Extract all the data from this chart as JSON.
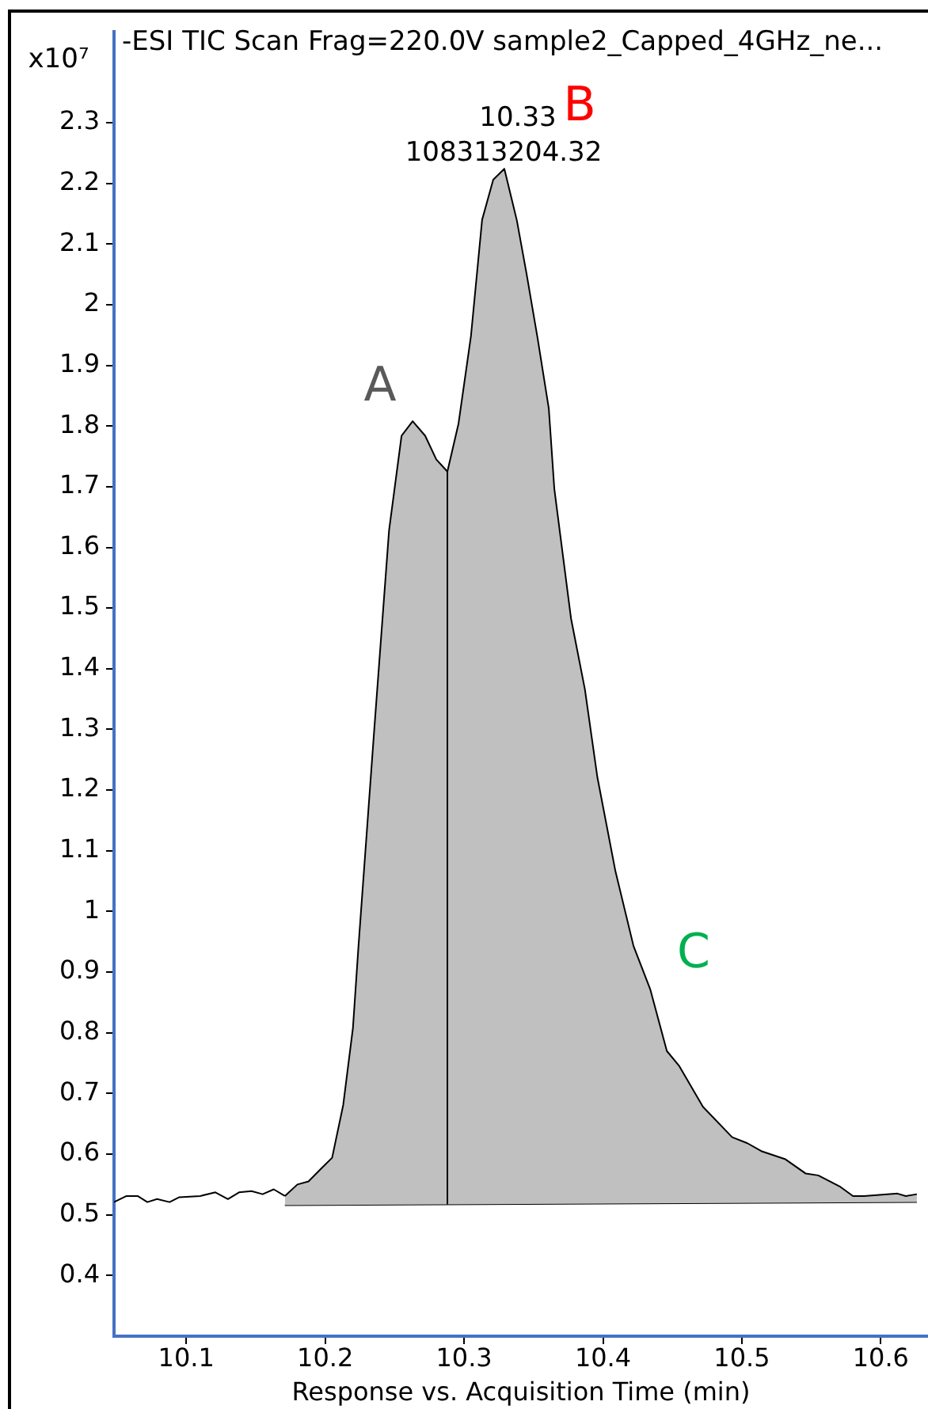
{
  "chart_data": {
    "type": "line",
    "title": "-ESI TIC Scan Frag=220.0V sample2_Capped_4GHz_ne...",
    "xlabel": "Response vs. Acquisition Time (min)",
    "ylabel": "x10⁷",
    "xlim": [
      10.048,
      10.634
    ],
    "xticks": [
      10.1,
      10.2,
      10.3,
      10.4,
      10.5,
      10.6
    ],
    "ylim": [
      0.3,
      2.45
    ],
    "yticks": [
      0.4,
      0.5,
      0.6,
      0.7,
      0.8,
      0.9,
      1,
      1.1,
      1.2,
      1.3,
      1.4,
      1.5,
      1.6,
      1.7,
      1.8,
      1.9,
      2,
      2.1,
      2.2,
      2.3
    ],
    "grid": false,
    "legend": false,
    "marker": "none",
    "line_style": "solid",
    "series": [
      {
        "type": "line",
        "color": "#000000",
        "x": [
          10.048,
          10.057,
          10.065,
          10.072,
          10.079,
          10.088,
          10.095,
          10.11,
          10.121,
          10.13,
          10.138,
          10.147,
          10.155,
          10.163,
          10.171
        ],
        "values": [
          0.521,
          0.531,
          0.531,
          0.521,
          0.526,
          0.521,
          0.529,
          0.531,
          0.537,
          0.526,
          0.537,
          0.539,
          0.534,
          0.542,
          0.531
        ]
      },
      {
        "type": "area",
        "color": "#c0c0c0",
        "x": [
          10.171,
          10.18,
          10.188,
          10.197,
          10.205,
          10.213,
          10.22,
          10.224,
          10.235,
          10.246,
          10.255,
          10.263,
          10.272,
          10.28,
          10.288,
          10.296,
          10.305,
          10.313,
          10.321,
          10.329,
          10.338,
          10.345,
          10.353,
          10.361,
          10.365,
          10.377,
          10.387,
          10.396,
          10.409,
          10.422,
          10.434,
          10.446,
          10.455,
          10.472,
          10.493,
          10.504,
          10.514,
          10.531,
          10.546,
          10.555,
          10.571,
          10.58,
          10.588,
          10.612,
          10.618,
          10.626
        ],
        "values": [
          0.531,
          0.55,
          0.555,
          0.576,
          0.594,
          0.681,
          0.808,
          0.943,
          1.289,
          1.628,
          1.784,
          1.808,
          1.784,
          1.745,
          1.725,
          1.804,
          1.949,
          2.14,
          2.206,
          2.224,
          2.139,
          2.051,
          1.944,
          1.829,
          1.696,
          1.483,
          1.366,
          1.221,
          1.066,
          0.943,
          0.872,
          0.77,
          0.745,
          0.678,
          0.628,
          0.618,
          0.605,
          0.592,
          0.568,
          0.565,
          0.546,
          0.531,
          0.531,
          0.535,
          0.531,
          0.534
        ]
      },
      {
        "type": "line",
        "color": "#000000",
        "x": [
          10.171,
          10.626
        ],
        "values": [
          0.516,
          0.521
        ]
      }
    ],
    "ref_lines": [
      {
        "axis": "x",
        "value": 10.288,
        "color": "#000000"
      }
    ],
    "annotations": [
      "A",
      "10.33",
      "108313204.32",
      "B",
      "C"
    ]
  }
}
